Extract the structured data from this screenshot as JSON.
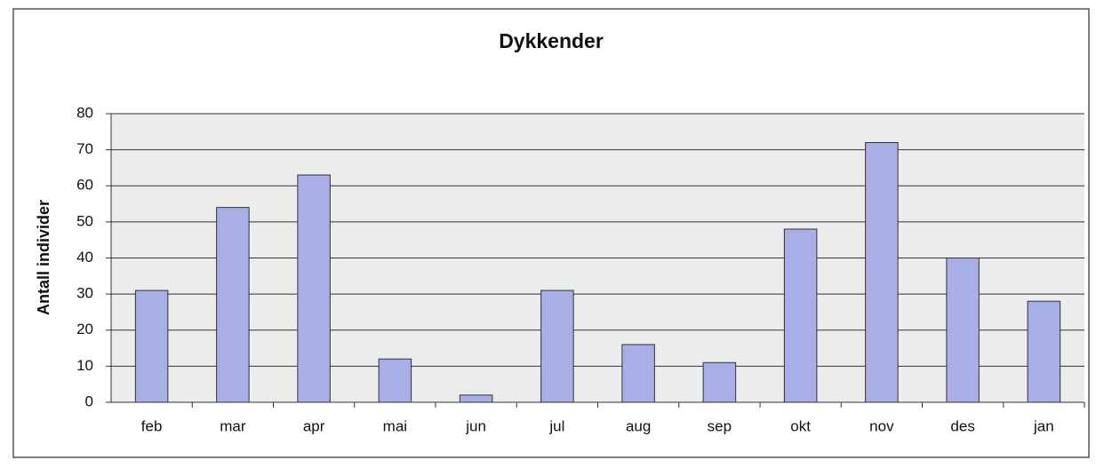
{
  "chart_data": {
    "type": "bar",
    "title": "Dykkender",
    "y_label": "Antall individer",
    "categories": [
      "feb",
      "mar",
      "apr",
      "mai",
      "jun",
      "jul",
      "aug",
      "sep",
      "okt",
      "nov",
      "des",
      "jan"
    ],
    "values": [
      31,
      54,
      63,
      12,
      2,
      31,
      16,
      11,
      48,
      72,
      40,
      28
    ],
    "color": "#a8aee6",
    "ylim": [
      0,
      80
    ],
    "yticks": [
      0,
      10,
      20,
      30,
      40,
      50,
      60,
      70,
      80
    ],
    "grid": true
  }
}
